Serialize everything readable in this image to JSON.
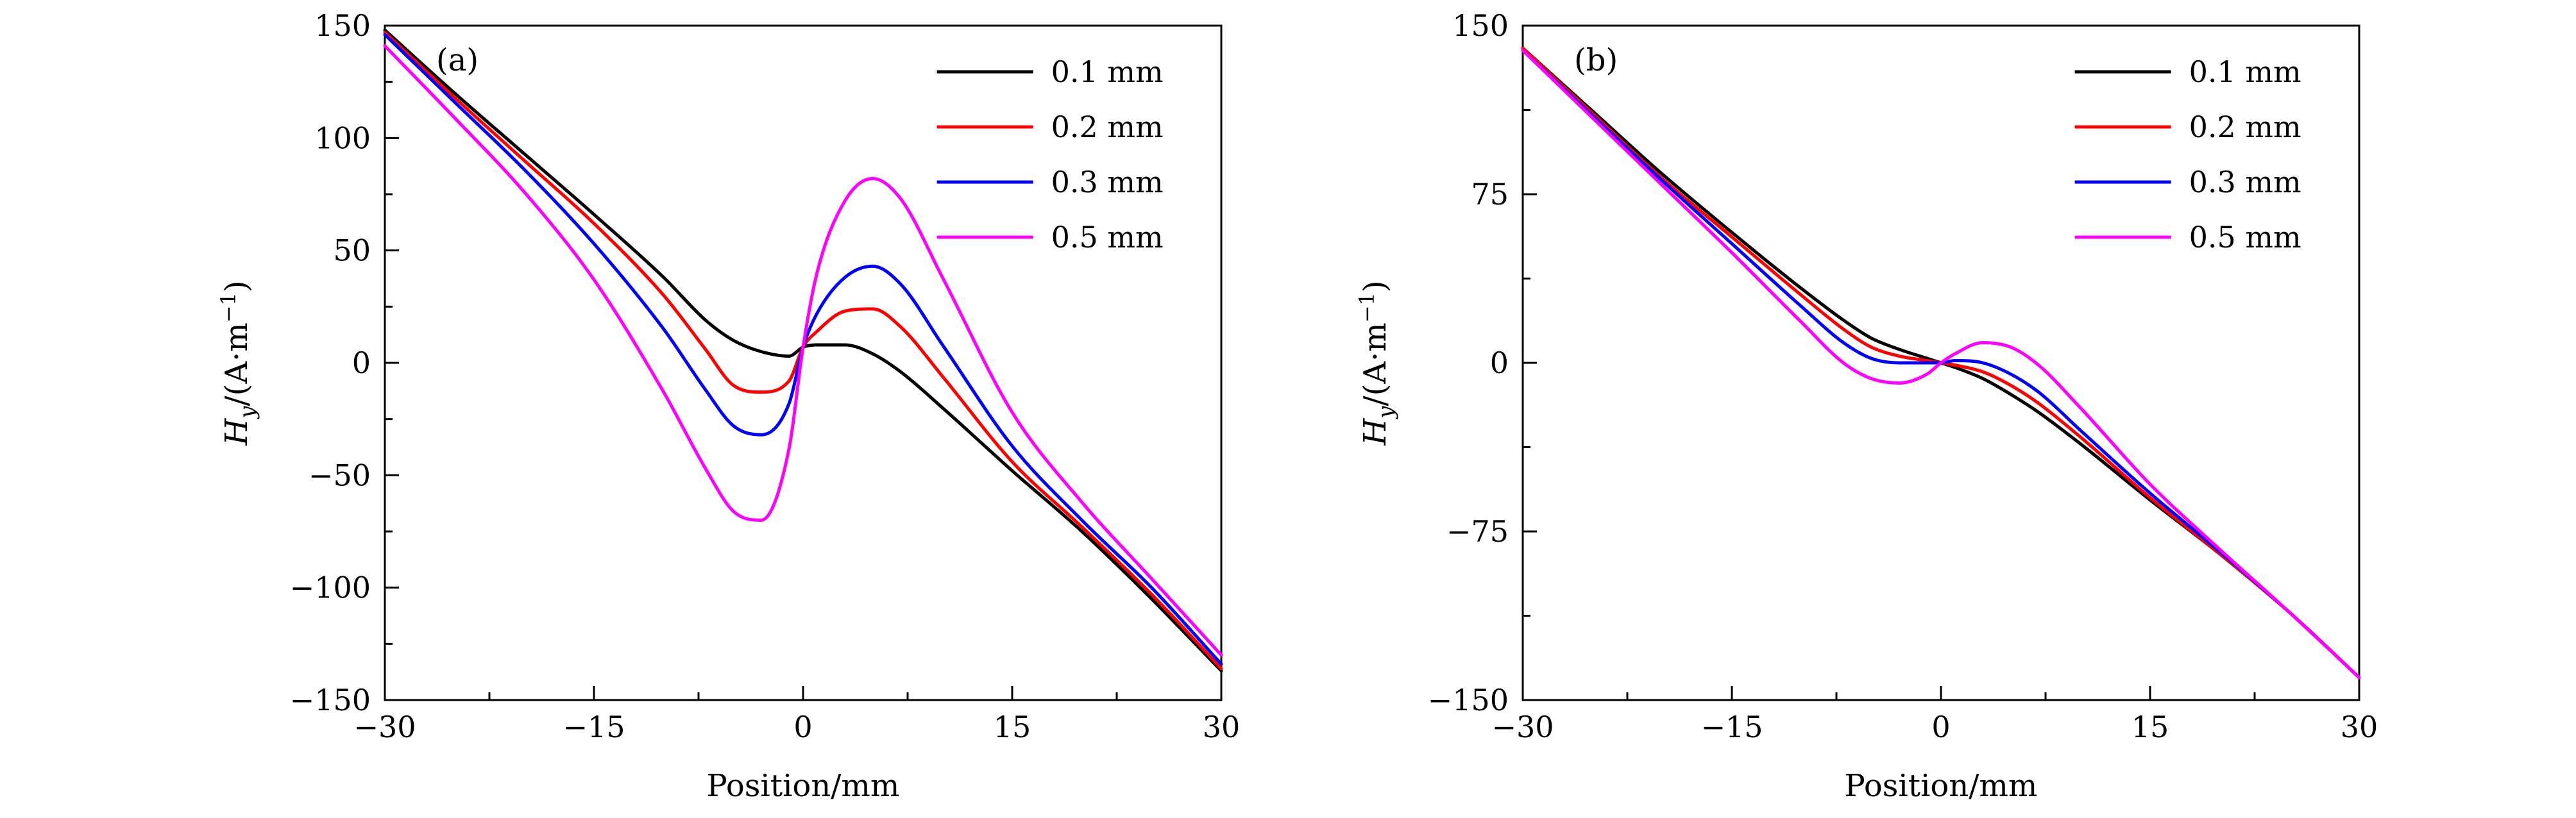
{
  "figure": {
    "panels": [
      {
        "panel_label": "(a)",
        "xlabel": "Position/mm",
        "ylabel_main": "H",
        "ylabel_sub": "y",
        "ylabel_tail": "/(A·m",
        "ylabel_sup": "−1",
        "ylabel_close": ")"
      },
      {
        "panel_label": "(b)",
        "xlabel": "Position/mm",
        "ylabel_main": "H",
        "ylabel_sub": "y",
        "ylabel_tail": "/(A·m",
        "ylabel_sup": "−1",
        "ylabel_close": ")"
      }
    ]
  },
  "chart_data": [
    {
      "type": "line",
      "panel_label": "(a)",
      "xlabel": "Position/mm",
      "ylabel": "Hy/(A·m−1)",
      "xlim": [
        -30,
        30
      ],
      "ylim": [
        -150,
        150
      ],
      "xticks": [
        -30,
        -15,
        0,
        15,
        30
      ],
      "xtick_labels": [
        "−30",
        "−15",
        "0",
        "15",
        "30"
      ],
      "yticks": [
        150,
        100,
        50,
        0,
        -50,
        -100,
        -150
      ],
      "ytick_labels": [
        "150",
        "100",
        "50",
        "0",
        "−50",
        "−100",
        "−150"
      ],
      "legend_position": "top-right",
      "grid": false,
      "x": [
        -30,
        -25,
        -20,
        -15,
        -10,
        -7,
        -5,
        -3,
        -1,
        0,
        1,
        3,
        5,
        7,
        10,
        15,
        20,
        25,
        30
      ],
      "series": [
        {
          "name": "0.1 mm",
          "color": "#000000",
          "values": [
            148,
            120,
            93,
            66,
            38,
            19,
            10,
            5,
            3,
            7,
            8,
            8,
            4,
            -4,
            -20,
            -48,
            -75,
            -105,
            -137
          ]
        },
        {
          "name": "0.2 mm",
          "color": "#ff0000",
          "values": [
            147,
            118,
            90,
            62,
            30,
            6,
            -10,
            -13,
            -8,
            7,
            14,
            23,
            24,
            16,
            -6,
            -44,
            -73,
            -103,
            -136
          ]
        },
        {
          "name": "0.3 mm",
          "color": "#0000ff",
          "values": [
            146,
            116,
            86,
            53,
            15,
            -12,
            -28,
            -32,
            -18,
            7,
            22,
            38,
            43,
            35,
            8,
            -37,
            -70,
            -100,
            -134
          ]
        },
        {
          "name": "0.5 mm",
          "color": "#ff00ff",
          "values": [
            141,
            109,
            76,
            37,
            -13,
            -47,
            -66,
            -70,
            -38,
            7,
            40,
            72,
            82,
            73,
            38,
            -22,
            -62,
            -96,
            -130
          ]
        }
      ]
    },
    {
      "type": "line",
      "panel_label": "(b)",
      "xlabel": "Position/mm",
      "ylabel": "Hy/(A·m−1)",
      "xlim": [
        -30,
        30
      ],
      "ylim": [
        -150,
        150
      ],
      "xticks": [
        -30,
        -15,
        0,
        15,
        30
      ],
      "xtick_labels": [
        "−30",
        "−15",
        "0",
        "15",
        "30"
      ],
      "yticks": [
        150,
        75,
        0,
        -75,
        -150
      ],
      "ytick_labels": [
        "150",
        "75",
        "0",
        "−75",
        "−150"
      ],
      "legend_position": "top-right",
      "grid": false,
      "x": [
        -30,
        -25,
        -20,
        -15,
        -10,
        -7,
        -5,
        -3,
        -1,
        0,
        1,
        3,
        5,
        7,
        10,
        15,
        20,
        25,
        30
      ],
      "series": [
        {
          "name": "0.1 mm",
          "color": "#000000",
          "values": [
            140,
            112,
            84,
            58,
            33,
            19,
            11,
            6,
            2,
            0,
            -2,
            -7,
            -14,
            -22,
            -36,
            -61,
            -85,
            -111,
            -140
          ]
        },
        {
          "name": "0.2 mm",
          "color": "#ff0000",
          "values": [
            140,
            111,
            82,
            56,
            30,
            15,
            7,
            3,
            1,
            0,
            -1,
            -4,
            -10,
            -18,
            -33,
            -60,
            -85,
            -111,
            -140
          ]
        },
        {
          "name": "0.3 mm",
          "color": "#0000ff",
          "values": [
            139,
            110,
            81,
            53,
            25,
            9,
            2,
            0,
            0,
            0,
            1,
            0,
            -5,
            -13,
            -30,
            -58,
            -84,
            -111,
            -140
          ]
        },
        {
          "name": "0.5 mm",
          "color": "#ff00ff",
          "values": [
            139,
            109,
            79,
            49,
            18,
            0,
            -7,
            -9,
            -5,
            0,
            4,
            9,
            7,
            -1,
            -20,
            -54,
            -83,
            -111,
            -140
          ]
        }
      ]
    }
  ]
}
